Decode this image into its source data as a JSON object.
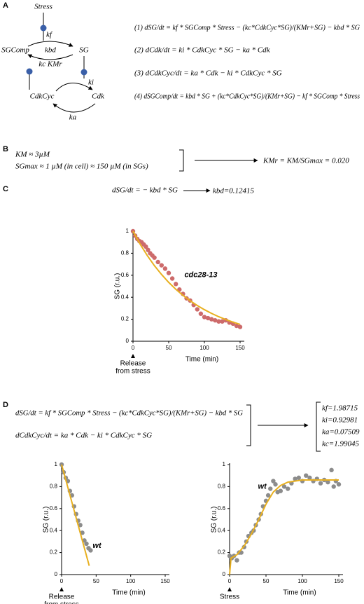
{
  "panels": {
    "A": {
      "letter": "A",
      "diagram": {
        "stress": "Stress",
        "kf": "kf",
        "sg": "SG",
        "sg_comp": "SGComp",
        "kbd": "kbd",
        "kc_kmr": "kc KMr",
        "ki": "ki",
        "cdk_cyc": "CdkCyc",
        "cdk": "Cdk",
        "ka": "ka"
      },
      "equations": [
        "(1)  dSG/dt = kf * SGComp * Stress − (kc*CdkCyc*SG)/(KMr+SG) − kbd * SG",
        "(2)  dCdk/dt = ki * CdkCyc * SG − ka * Cdk",
        "(3)  dCdkCyc/dt = ka * Cdk − ki * CdkCyc * SG",
        "(4)  dSGComp/dt = kbd * SG + (kc*CdkCyc*SG)/(KMr+SG) − kf * SGComp * Stress"
      ]
    },
    "B": {
      "letter": "B",
      "lines": [
        "KM ≈ 3µM",
        "SGmax ≈ 1 µM (in cell)  ≈ 150 µM (in SGs)"
      ],
      "result": "KMr = KM/SGmax = 0.020"
    },
    "C": {
      "letter": "C",
      "equation": "dSG/dt = − kbd * SG",
      "result": "kbd=0.12415"
    },
    "D": {
      "letter": "D",
      "equations": [
        "dSG/dt = kf * SGComp * Stress − (kc*CdkCyc*SG)/(KMr+SG) − kbd * SG",
        "dCdkCyc/dt = ka * Cdk − ki * CdkCyc * SG"
      ],
      "results": [
        "kf=1.98715",
        "ki=0.92981",
        "ka=0.07509",
        "kc=1.99045"
      ]
    }
  },
  "chart_data": [
    {
      "type": "scatter",
      "ylabel": "SG (r.u.)",
      "xlabel": "Time (min)",
      "xnote": [
        "Release",
        "from stress"
      ],
      "annotation": "cdc28-13",
      "xlim": [
        0,
        150
      ],
      "ylim": [
        0,
        1
      ],
      "xticks": [
        0,
        50,
        100,
        150
      ],
      "yticks": [
        0,
        0.2,
        0.4,
        0.6,
        0.8,
        1
      ],
      "series": [
        {
          "mode": "markers",
          "color": "#cd6b6b",
          "x": [
            0,
            3,
            6,
            9,
            12,
            15,
            18,
            21,
            24,
            27,
            30,
            35,
            40,
            45,
            50,
            55,
            60,
            65,
            70,
            75,
            80,
            85,
            90,
            95,
            100,
            105,
            110,
            115,
            120,
            125,
            130,
            135,
            140,
            145,
            150
          ],
          "values": [
            1,
            0.96,
            0.93,
            0.91,
            0.9,
            0.88,
            0.86,
            0.83,
            0.8,
            0.78,
            0.76,
            0.72,
            0.69,
            0.66,
            0.62,
            0.57,
            0.52,
            0.47,
            0.43,
            0.39,
            0.37,
            0.33,
            0.29,
            0.25,
            0.22,
            0.21,
            0.2,
            0.19,
            0.18,
            0.18,
            0.19,
            0.17,
            0.16,
            0.14,
            0.13
          ]
        },
        {
          "mode": "line",
          "color": "#e8b020",
          "x": [
            0,
            10,
            20,
            30,
            40,
            50,
            60,
            70,
            80,
            90,
            100,
            110,
            120,
            130,
            140,
            150
          ],
          "values": [
            1,
            0.882,
            0.779,
            0.687,
            0.607,
            0.535,
            0.472,
            0.417,
            0.368,
            0.325,
            0.287,
            0.253,
            0.223,
            0.197,
            0.174,
            0.153
          ]
        }
      ]
    },
    {
      "type": "scatter",
      "ylabel": "SG (r.u.)",
      "xlabel": "Time (min)",
      "xnote": [
        "Release",
        "from stress"
      ],
      "annotation": "wt",
      "xlim": [
        0,
        150
      ],
      "ylim": [
        0,
        1
      ],
      "xticks": [
        0,
        50,
        100,
        150
      ],
      "yticks": [
        0,
        0.2,
        0.4,
        0.6,
        0.8,
        1
      ],
      "series": [
        {
          "mode": "markers",
          "color": "#8c8c8c",
          "x": [
            0,
            3,
            6,
            9,
            12,
            15,
            18,
            21,
            24,
            27,
            30,
            33,
            36,
            39,
            42
          ],
          "values": [
            1,
            0.93,
            0.88,
            0.85,
            0.76,
            0.72,
            0.62,
            0.55,
            0.49,
            0.45,
            0.38,
            0.31,
            0.28,
            0.24,
            0.22
          ]
        },
        {
          "mode": "line",
          "color": "#e8b020",
          "x": [
            0,
            40
          ],
          "values": [
            1,
            0.08
          ]
        }
      ]
    },
    {
      "type": "scatter",
      "ylabel": "SG (r.u.)",
      "xlabel": "Time (min)",
      "xnote": [
        "Stress"
      ],
      "annotation": "wt",
      "xlim": [
        0,
        150
      ],
      "ylim": [
        0,
        1
      ],
      "xticks": [
        0,
        50,
        100,
        150
      ],
      "yticks": [
        0,
        0.2,
        0.4,
        0.6,
        0.8,
        1
      ],
      "series": [
        {
          "mode": "markers",
          "color": "#8c8c8c",
          "x": [
            0,
            3,
            6,
            10,
            13,
            16,
            20,
            23,
            26,
            30,
            33,
            36,
            40,
            43,
            46,
            50,
            53,
            56,
            60,
            63,
            66,
            70,
            75,
            80,
            85,
            90,
            95,
            100,
            105,
            110,
            115,
            120,
            125,
            130,
            135,
            140,
            143,
            146,
            150
          ],
          "values": [
            0.17,
            0.15,
            0.17,
            0.13,
            0.2,
            0.2,
            0.25,
            0.3,
            0.35,
            0.38,
            0.4,
            0.45,
            0.5,
            0.55,
            0.62,
            0.67,
            0.72,
            0.78,
            0.85,
            0.82,
            0.75,
            0.76,
            0.8,
            0.78,
            0.83,
            0.87,
            0.88,
            0.85,
            0.9,
            0.88,
            0.85,
            0.87,
            0.83,
            0.86,
            0.84,
            0.95,
            0.8,
            0.85,
            0.82
          ]
        },
        {
          "mode": "line",
          "color": "#e8b020",
          "x": [
            0,
            2,
            10,
            20,
            30,
            40,
            50,
            60,
            70,
            80,
            100,
            150
          ],
          "values": [
            0,
            0.15,
            0.18,
            0.26,
            0.37,
            0.5,
            0.64,
            0.75,
            0.81,
            0.84,
            0.86,
            0.86
          ]
        }
      ]
    }
  ]
}
